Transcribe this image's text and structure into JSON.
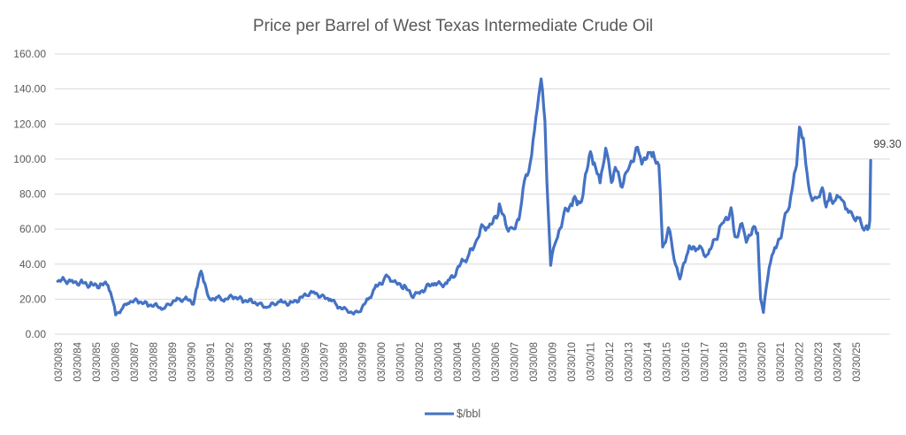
{
  "chart_data": {
    "type": "line",
    "title": "Price per Barrel of West Texas Intermediate Crude Oil",
    "xlabel": "",
    "ylabel": "",
    "ylim": [
      0,
      160
    ],
    "yticks": [
      "0.00",
      "20.00",
      "40.00",
      "60.00",
      "80.00",
      "100.00",
      "120.00",
      "140.00",
      "160.00"
    ],
    "grid": true,
    "legend_position": "bottom",
    "x_tick_labels": [
      "03/30/83",
      "03/30/84",
      "03/30/85",
      "03/30/86",
      "03/30/87",
      "03/30/88",
      "03/30/89",
      "03/30/90",
      "03/30/91",
      "03/30/92",
      "03/30/93",
      "03/30/94",
      "03/30/95",
      "03/30/96",
      "03/30/97",
      "03/30/98",
      "03/30/99",
      "03/30/00",
      "03/30/01",
      "03/30/02",
      "03/30/03",
      "03/30/04",
      "03/30/05",
      "03/30/06",
      "03/30/07",
      "03/30/08",
      "03/30/09",
      "03/30/10",
      "03/30/11",
      "03/30/12",
      "03/30/13",
      "03/30/14",
      "03/30/15",
      "03/30/16",
      "03/30/17",
      "03/30/18",
      "03/30/19",
      "03/30/20",
      "03/30/21",
      "03/30/22",
      "03/30/23",
      "03/30/24",
      "03/30/25"
    ],
    "series": [
      {
        "name": "$/bbl",
        "color": "#4472C4",
        "x": [
          1983.25,
          1983.6,
          1984.0,
          1984.5,
          1985.0,
          1985.5,
          1985.9,
          1986.1,
          1986.3,
          1986.6,
          1987.0,
          1987.5,
          1988.0,
          1988.5,
          1988.8,
          1989.2,
          1989.6,
          1990.0,
          1990.4,
          1990.6,
          1990.8,
          1991.0,
          1991.2,
          1991.6,
          1992.0,
          1992.5,
          1993.0,
          1993.5,
          1993.9,
          1994.3,
          1994.7,
          1995.0,
          1995.5,
          1996.0,
          1996.4,
          1996.8,
          1997.2,
          1997.6,
          1998.0,
          1998.4,
          1998.9,
          1999.2,
          1999.6,
          2000.0,
          2000.4,
          2000.7,
          2001.0,
          2001.5,
          2001.9,
          2002.3,
          2002.7,
          2003.1,
          2003.4,
          2003.8,
          2004.2,
          2004.6,
          2004.9,
          2005.3,
          2005.7,
          2006.0,
          2006.5,
          2006.9,
          2007.2,
          2007.6,
          2007.9,
          2008.2,
          2008.5,
          2008.7,
          2008.9,
          2009.0,
          2009.2,
          2009.5,
          2009.9,
          2010.4,
          2010.6,
          2010.9,
          2011.3,
          2011.5,
          2011.8,
          2012.1,
          2012.4,
          2012.6,
          2012.9,
          2013.3,
          2013.7,
          2014.0,
          2014.4,
          2014.6,
          2014.9,
          2015.1,
          2015.4,
          2015.7,
          2016.0,
          2016.2,
          2016.5,
          2016.9,
          2017.2,
          2017.5,
          2017.9,
          2018.3,
          2018.7,
          2018.9,
          2019.2,
          2019.5,
          2019.9,
          2020.1,
          2020.25,
          2020.4,
          2020.7,
          2021.0,
          2021.4,
          2021.7,
          2021.9,
          2022.15,
          2022.3,
          2022.5,
          2022.7,
          2022.9,
          2023.2,
          2023.5,
          2023.7,
          2023.9,
          2024.2,
          2024.5,
          2024.8,
          2025.1,
          2025.4,
          2025.7,
          2025.95,
          2026.0,
          2026.05
        ],
        "values": [
          29.5,
          31,
          30,
          29.5,
          28,
          27.5,
          29,
          21,
          11.5,
          14,
          18.5,
          19,
          17,
          16.5,
          14,
          18,
          20,
          20,
          18,
          27,
          37,
          28,
          20,
          21,
          19.5,
          21.5,
          19.5,
          19,
          17,
          15,
          18,
          18.5,
          17.5,
          20,
          23,
          24,
          21,
          20,
          16,
          14,
          12,
          14,
          20,
          27,
          31,
          33,
          29,
          27,
          22,
          24,
          27,
          29,
          28,
          30,
          35,
          42,
          45,
          53,
          63,
          60,
          72,
          62,
          58,
          70,
          91,
          100,
          132,
          145,
          120,
          90,
          40,
          55,
          68,
          77,
          74,
          80,
          105,
          95,
          88,
          106,
          88,
          95,
          85,
          95,
          105,
          100,
          102,
          104,
          95,
          50,
          60,
          45,
          30,
          42,
          48,
          50,
          47,
          45,
          55,
          65,
          70,
          55,
          62,
          55,
          60,
          58,
          20,
          12,
          40,
          48,
          60,
          72,
          83,
          95,
          120,
          110,
          90,
          80,
          75,
          85,
          70,
          80,
          75,
          80,
          70,
          68,
          65,
          62,
          58,
          64,
          99.3
        ],
        "last_label": "99.30"
      }
    ]
  },
  "legend": {
    "label": "$/bbl"
  },
  "data_label": "99.30"
}
